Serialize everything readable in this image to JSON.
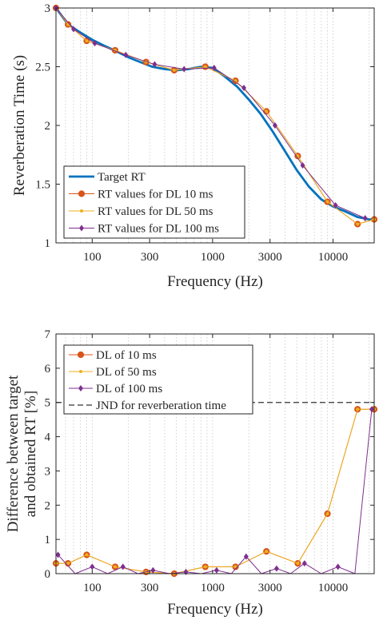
{
  "chart_data": [
    {
      "type": "line",
      "xscale": "log",
      "xlim": [
        50,
        22000
      ],
      "ylim": [
        1,
        3
      ],
      "xticks": [
        100,
        300,
        1000,
        3000,
        10000
      ],
      "xticklabels": [
        "100",
        "300",
        "1000",
        "3000",
        "10000"
      ],
      "yticks": [
        1,
        1.5,
        2,
        2.5,
        3
      ],
      "yticklabels": [
        "1",
        "1.5",
        "2",
        "2.5",
        "3"
      ],
      "xlabel": "Frequency (Hz)",
      "ylabel": "Reverberation Time (s)",
      "grid": "vertical-minor-dotted",
      "legend_position": "bottom-left",
      "colors": {
        "target": "#0072BD",
        "dl10": "#D95319",
        "dl50": "#EDB120",
        "dl100": "#7E2F8E",
        "grid": "#c8c8c8",
        "axis": "#262626"
      },
      "target": {
        "name": "Target RT",
        "x": [
          50,
          63,
          80,
          100,
          125,
          160,
          200,
          250,
          315,
          400,
          500,
          630,
          800,
          1000,
          1250,
          1600,
          2000,
          2500,
          3150,
          4000,
          5000,
          6300,
          8000,
          10000,
          12500,
          16000,
          20000,
          22000
        ],
        "y": [
          3.0,
          2.86,
          2.79,
          2.73,
          2.68,
          2.63,
          2.58,
          2.54,
          2.5,
          2.48,
          2.47,
          2.48,
          2.5,
          2.49,
          2.42,
          2.33,
          2.22,
          2.1,
          1.95,
          1.78,
          1.62,
          1.48,
          1.37,
          1.31,
          1.27,
          1.22,
          1.2,
          1.2
        ]
      },
      "series": [
        {
          "name": "RT values for DL 10 ms",
          "marker": "circle",
          "x": [
            50,
            63,
            90,
            155,
            280,
            480,
            870,
            1550,
            2800,
            5100,
            9000,
            16000,
            22000
          ],
          "y": [
            3.0,
            2.86,
            2.72,
            2.64,
            2.54,
            2.47,
            2.5,
            2.38,
            2.12,
            1.74,
            1.35,
            1.16,
            1.2
          ]
        },
        {
          "name": "RT values for DL 50 ms",
          "marker": "dot",
          "x": [
            50,
            63,
            90,
            155,
            280,
            480,
            870,
            1550,
            2800,
            5100,
            9000,
            16000,
            22000
          ],
          "y": [
            3.0,
            2.86,
            2.72,
            2.64,
            2.54,
            2.47,
            2.5,
            2.38,
            2.12,
            1.74,
            1.35,
            1.16,
            1.2
          ]
        },
        {
          "name": "RT values for DL 100 ms",
          "marker": "diamond",
          "x": [
            50,
            70,
            105,
            190,
            330,
            580,
            1030,
            1820,
            3300,
            5600,
            10500,
            18500
          ],
          "y": [
            3.0,
            2.82,
            2.7,
            2.6,
            2.52,
            2.48,
            2.49,
            2.32,
            2.0,
            1.66,
            1.32,
            1.21
          ]
        }
      ],
      "legend": [
        "Target RT",
        "RT values for DL 10 ms",
        "RT values for DL 50 ms",
        "RT values for DL 100 ms"
      ]
    },
    {
      "type": "line",
      "xscale": "log",
      "xlim": [
        50,
        22000
      ],
      "ylim": [
        0,
        7
      ],
      "xticks": [
        100,
        300,
        1000,
        3000,
        10000
      ],
      "xticklabels": [
        "100",
        "300",
        "1000",
        "3000",
        "10000"
      ],
      "yticks": [
        0,
        1,
        2,
        3,
        4,
        5,
        6,
        7
      ],
      "yticklabels": [
        "0",
        "1",
        "2",
        "3",
        "4",
        "5",
        "6",
        "7"
      ],
      "xlabel": "Frequency (Hz)",
      "ylabel": [
        "Difference between target",
        "and obtained RT [%]"
      ],
      "grid": "vertical-minor-dotted",
      "legend_position": "top-left",
      "jnd": {
        "name": "JND for reverberation time",
        "y": 5
      },
      "series": [
        {
          "name": "DL of 10 ms",
          "marker": "circle",
          "x": [
            50,
            63,
            90,
            155,
            280,
            480,
            870,
            1550,
            2800,
            5100,
            9000,
            16000,
            22000
          ],
          "y": [
            0.3,
            0.3,
            0.55,
            0.2,
            0.05,
            0.0,
            0.2,
            0.2,
            0.65,
            0.3,
            1.75,
            4.8,
            4.8
          ]
        },
        {
          "name": "DL of 50 ms",
          "marker": "dot",
          "x": [
            50,
            63,
            90,
            155,
            280,
            480,
            870,
            1550,
            2800,
            5100,
            9000,
            16000,
            22000
          ],
          "y": [
            0.3,
            0.3,
            0.55,
            0.2,
            0.05,
            0.0,
            0.2,
            0.2,
            0.65,
            0.3,
            1.75,
            4.8,
            4.8
          ]
        },
        {
          "name": "DL of 100 ms",
          "marker": "diamond",
          "x": [
            52,
            100,
            180,
            320,
            600,
            1080,
            1900,
            3400,
            5800,
            11000,
            21000
          ],
          "y": [
            0.55,
            0.2,
            0.2,
            0.1,
            0.05,
            0.1,
            0.5,
            0.15,
            0.3,
            0.2,
            4.8
          ]
        }
      ],
      "legend": [
        "DL of 10 ms",
        "DL of 50 ms",
        "DL of 100 ms",
        "JND for reverberation time"
      ]
    }
  ]
}
